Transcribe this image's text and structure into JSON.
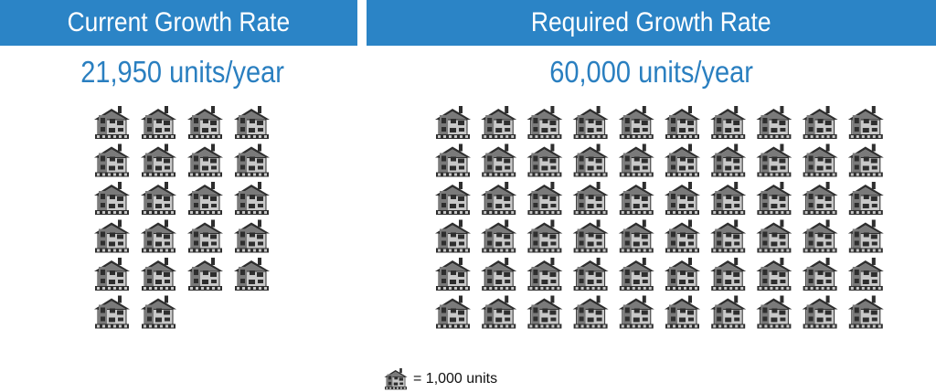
{
  "colors": {
    "header_bg": "#2b84c6",
    "rate_text": "#2a7fc0",
    "house_dark": "#2e2e2e",
    "house_mid": "#7a7a7a",
    "house_light": "#c9c9c9"
  },
  "legend": {
    "icon": "house-icon",
    "text": "= 1,000 units"
  },
  "chart_data": {
    "type": "pictogram",
    "unit_value": 1000,
    "unit_label": "= 1,000 units",
    "panels": [
      {
        "title": "Current Growth Rate",
        "value_label": "21,950 units/year",
        "value": 21950,
        "icons": 22,
        "columns": 4
      },
      {
        "title": "Required Growth Rate",
        "value_label": "60,000 units/year",
        "value": 60000,
        "icons": 60,
        "columns": 10
      }
    ]
  }
}
